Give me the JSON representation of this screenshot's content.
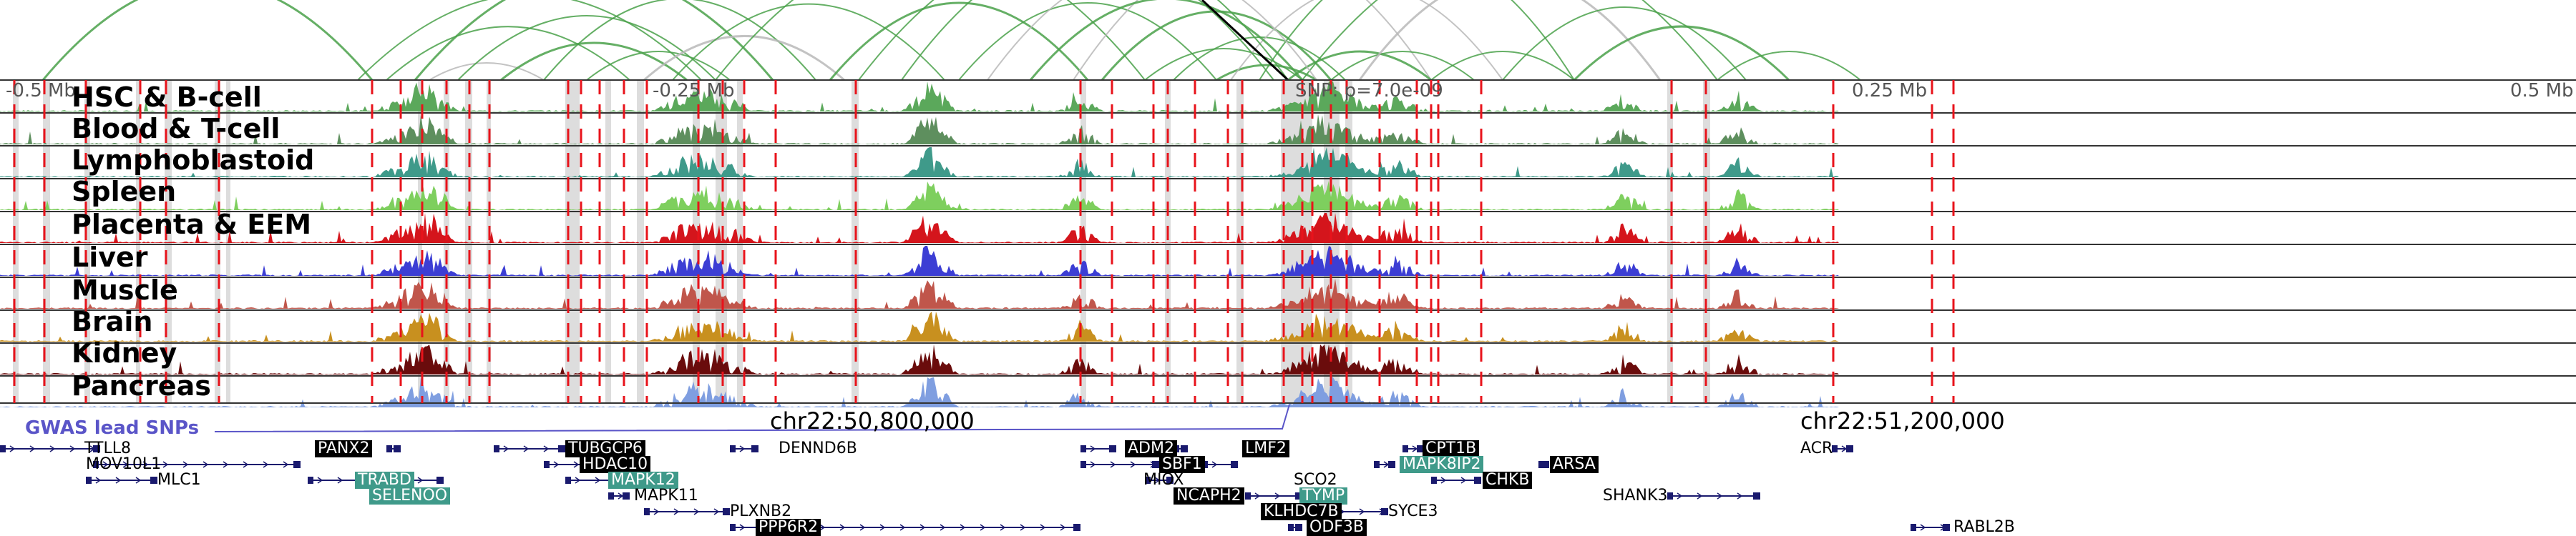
{
  "colors": {
    "hiccup_green": "#4aa14a",
    "hiccup_gray": "#b9b9b9",
    "snp_red": "#e8131b",
    "highlight_gray": "#cfcfcf",
    "gwas": "#5a55c8",
    "gene_box_black": "#000000",
    "gene_box_teal": "#3f9a8a",
    "gene_model": "#1a1a6e"
  },
  "axis_labels": [
    "-0.5 Mb",
    "-0.25 Mb",
    "0.25 Mb",
    "0.5 Mb"
  ],
  "snp_annotation": "SNP: p=7.0e-09",
  "coord_labels": [
    "chr22:50,800,000",
    "chr22:51,200,000"
  ],
  "gwas_label": "GWAS lead SNPs",
  "tracks": [
    {
      "name": "HSC & B-cell",
      "color": "#5ba85b"
    },
    {
      "name": "Blood & T-cell",
      "color": "#5e8f5e"
    },
    {
      "name": "Lymphoblastoid",
      "color": "#3f9a8a"
    },
    {
      "name": "Spleen",
      "color": "#7ecf5e"
    },
    {
      "name": "Placenta & EEM",
      "color": "#d4151c"
    },
    {
      "name": "Liver",
      "color": "#3c3ed4"
    },
    {
      "name": "Muscle",
      "color": "#c0564b"
    },
    {
      "name": "Brain",
      "color": "#c8901f"
    },
    {
      "name": "Kidney",
      "color": "#6a0c0c"
    },
    {
      "name": "Pancreas",
      "color": "#7f9ee0"
    }
  ],
  "genes": [
    {
      "name": "TTLL8",
      "style": "plain"
    },
    {
      "name": "MOV10L1",
      "style": "plain"
    },
    {
      "name": "MLC1",
      "style": "plain"
    },
    {
      "name": "PANX2",
      "style": "black"
    },
    {
      "name": "TRABD",
      "style": "teal"
    },
    {
      "name": "SELENOO",
      "style": "teal"
    },
    {
      "name": "TUBGCP6",
      "style": "black"
    },
    {
      "name": "HDAC10",
      "style": "black"
    },
    {
      "name": "MAPK12",
      "style": "teal"
    },
    {
      "name": "MAPK11",
      "style": "plain"
    },
    {
      "name": "PLXNB2",
      "style": "plain"
    },
    {
      "name": "PPP6R2",
      "style": "black"
    },
    {
      "name": "DENND6B",
      "style": "plain"
    },
    {
      "name": "ADM2",
      "style": "black"
    },
    {
      "name": "SBF1",
      "style": "black"
    },
    {
      "name": "MIOX",
      "style": "plain"
    },
    {
      "name": "NCAPH2",
      "style": "black"
    },
    {
      "name": "LMF2",
      "style": "black"
    },
    {
      "name": "SCO2",
      "style": "plain"
    },
    {
      "name": "TYMP",
      "style": "teal"
    },
    {
      "name": "KLHDC7B",
      "style": "black"
    },
    {
      "name": "ODF3B",
      "style": "black"
    },
    {
      "name": "SYCE3",
      "style": "plain"
    },
    {
      "name": "CPT1B",
      "style": "black"
    },
    {
      "name": "MAPK8IP2",
      "style": "teal"
    },
    {
      "name": "CHKB",
      "style": "black"
    },
    {
      "name": "ARSA",
      "style": "black"
    },
    {
      "name": "SHANK3",
      "style": "plain"
    },
    {
      "name": "ACR",
      "style": "plain"
    },
    {
      "name": "RABL2B",
      "style": "plain"
    }
  ]
}
